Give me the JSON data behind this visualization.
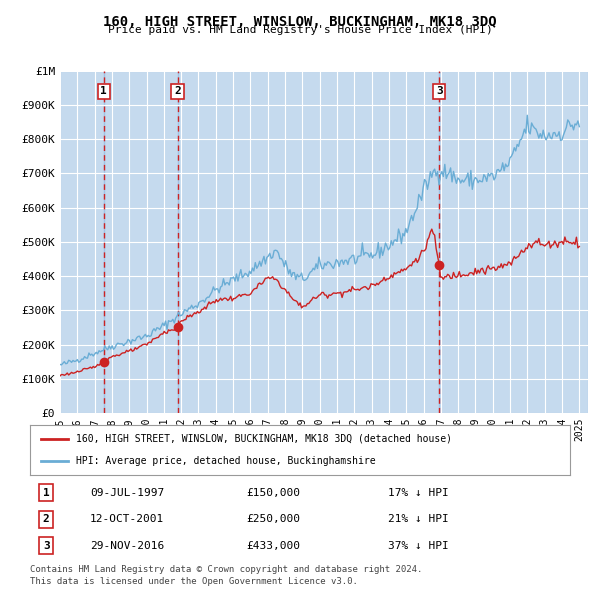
{
  "title": "160, HIGH STREET, WINSLOW, BUCKINGHAM, MK18 3DQ",
  "subtitle": "Price paid vs. HM Land Registry's House Price Index (HPI)",
  "ylabel": "",
  "background_color": "#dce9f5",
  "plot_bg_color": "#dce9f5",
  "grid_color": "#ffffff",
  "hpi_color": "#6aadd5",
  "price_color": "#cc2222",
  "sale1": {
    "date_num": 1997.53,
    "price": 150000,
    "label": "1",
    "year_label": "09-JUL-1997",
    "price_label": "£150,000",
    "pct_label": "17% ↓ HPI"
  },
  "sale2": {
    "date_num": 2001.79,
    "price": 250000,
    "label": "2",
    "year_label": "12-OCT-2001",
    "price_label": "£250,000",
    "pct_label": "21% ↓ HPI"
  },
  "sale3": {
    "date_num": 2016.91,
    "price": 433000,
    "label": "3",
    "year_label": "29-NOV-2016",
    "price_label": "£433,000",
    "pct_label": "37% ↓ HPI"
  },
  "xlim": [
    1995.0,
    2025.5
  ],
  "ylim": [
    0,
    1000000
  ],
  "yticks": [
    0,
    100000,
    200000,
    300000,
    400000,
    500000,
    600000,
    700000,
    800000,
    900000,
    1000000
  ],
  "ytick_labels": [
    "£0",
    "£100K",
    "£200K",
    "£300K",
    "£400K",
    "£500K",
    "£600K",
    "£700K",
    "£800K",
    "£900K",
    "£1M"
  ],
  "xtick_years": [
    1995,
    1996,
    1997,
    1998,
    1999,
    2000,
    2001,
    2002,
    2003,
    2004,
    2005,
    2006,
    2007,
    2008,
    2009,
    2010,
    2011,
    2012,
    2013,
    2014,
    2015,
    2016,
    2017,
    2018,
    2019,
    2020,
    2021,
    2022,
    2023,
    2024,
    2025
  ],
  "legend_house_label": "160, HIGH STREET, WINSLOW, BUCKINGHAM, MK18 3DQ (detached house)",
  "legend_hpi_label": "HPI: Average price, detached house, Buckinghamshire",
  "footer1": "Contains HM Land Registry data © Crown copyright and database right 2024.",
  "footer2": "This data is licensed under the Open Government Licence v3.0."
}
